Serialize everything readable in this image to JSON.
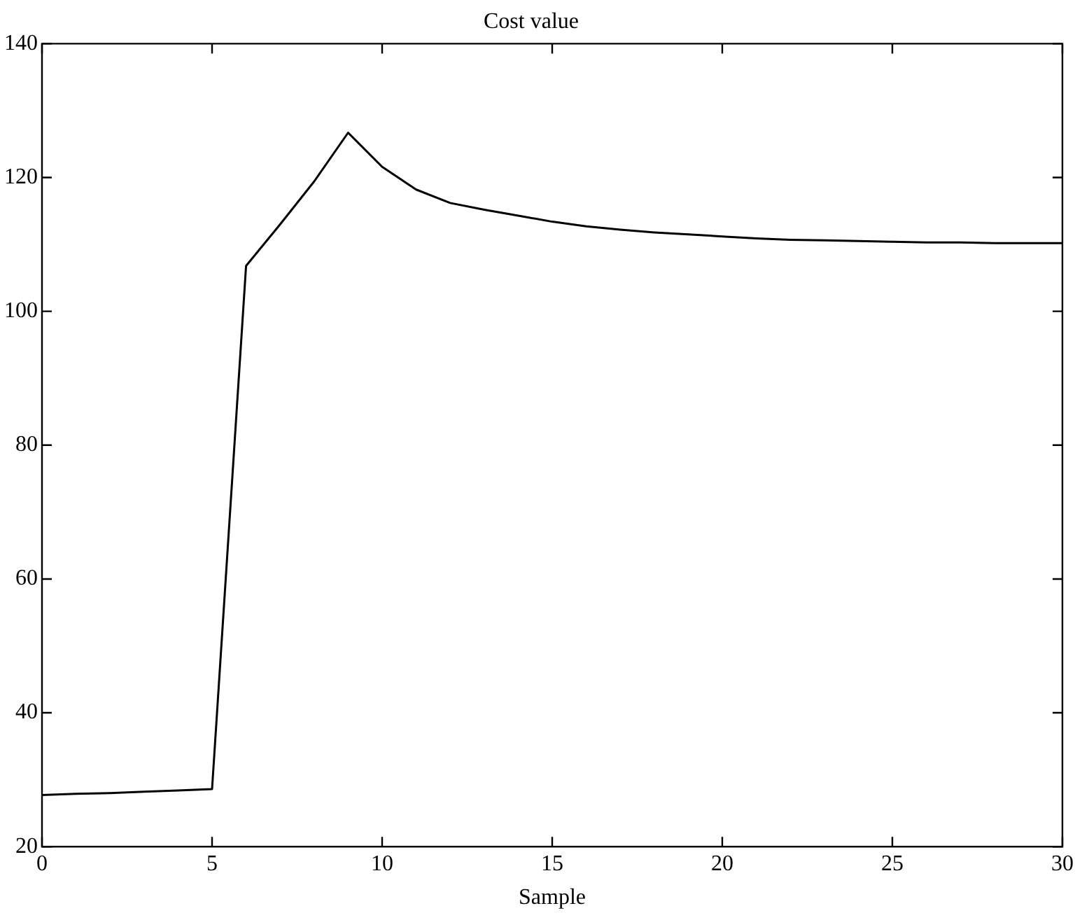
{
  "chart_data": {
    "type": "line",
    "title": "Cost value",
    "xlabel": "Sample",
    "x": [
      0,
      1,
      2,
      3,
      4,
      5,
      6,
      7,
      8,
      9,
      10,
      11,
      12,
      13,
      14,
      15,
      16,
      17,
      18,
      19,
      20,
      21,
      22,
      23,
      24,
      25,
      26,
      27,
      28,
      29,
      30
    ],
    "values": [
      27.7,
      27.9,
      28.0,
      28.2,
      28.4,
      28.6,
      106.8,
      113,
      119.4,
      126.7,
      121.6,
      118.2,
      116.2,
      115.2,
      114.3,
      113.4,
      112.7,
      112.2,
      111.8,
      111.5,
      111.2,
      110.9,
      110.7,
      110.6,
      110.5,
      110.4,
      110.3,
      110.3,
      110.2,
      110.2,
      110.2
    ],
    "color": "#000000",
    "marker": "none",
    "line_style": "solid",
    "grid": false,
    "legend": false,
    "xlim": [
      0,
      30
    ],
    "xticks": [
      0,
      5,
      10,
      15,
      20,
      25,
      30
    ],
    "ylim": [
      20,
      140
    ],
    "yticks": [
      20,
      40,
      60,
      80,
      100,
      120,
      140
    ]
  }
}
